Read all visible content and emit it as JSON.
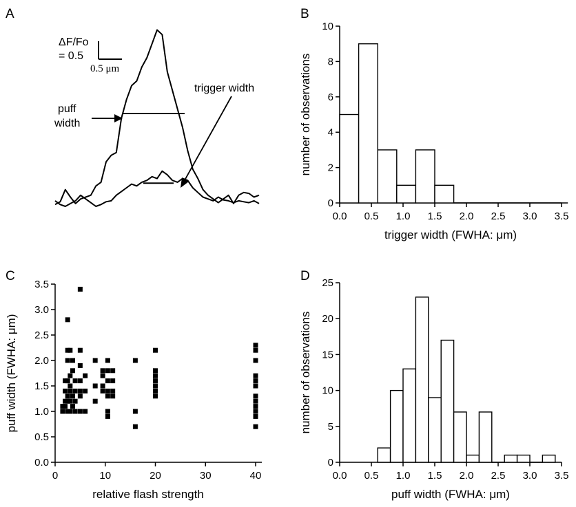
{
  "chart_data": [
    {
      "panel": "A",
      "type": "line",
      "annotations": {
        "scale_y_line1": "ΔF/Fo",
        "scale_y_line2": "= 0.5",
        "scale_x": "0.5 μm",
        "puff_line1": "puff",
        "puff_line2": "width",
        "trigger": "trigger width"
      },
      "series": [
        {
          "x": [
            0,
            0.1,
            0.2,
            0.3,
            0.4,
            0.5,
            0.6,
            0.7,
            0.8,
            0.9,
            1.0,
            1.1,
            1.2,
            1.3,
            1.4,
            1.5,
            1.6,
            1.7,
            1.8,
            1.9,
            2.0,
            2.1,
            2.2,
            2.3,
            2.4,
            2.5,
            2.6,
            2.7,
            2.8,
            2.9,
            3.0,
            3.1,
            3.2,
            3.3,
            3.4,
            3.5,
            3.6,
            3.7,
            3.8,
            3.9,
            4.0
          ],
          "y": [
            0.02,
            0.05,
            0.18,
            0.1,
            0.03,
            0.08,
            0.1,
            0.12,
            0.22,
            0.26,
            0.48,
            0.55,
            0.58,
            0.95,
            1.15,
            1.3,
            1.35,
            1.5,
            1.6,
            1.75,
            1.9,
            1.85,
            1.45,
            1.25,
            1.05,
            0.85,
            0.6,
            0.4,
            0.3,
            0.18,
            0.12,
            0.08,
            0.04,
            0.08,
            0.12,
            0.03,
            0.12,
            0.15,
            0.14,
            0.1,
            0.12
          ]
        },
        {
          "x": [
            0,
            0.1,
            0.2,
            0.3,
            0.4,
            0.5,
            0.6,
            0.7,
            0.8,
            0.9,
            1.0,
            1.1,
            1.2,
            1.3,
            1.4,
            1.5,
            1.6,
            1.7,
            1.8,
            1.9,
            2.0,
            2.1,
            2.2,
            2.3,
            2.4,
            2.5,
            2.6,
            2.7,
            2.8,
            2.9,
            3.0,
            3.1,
            3.2,
            3.3,
            3.4,
            3.5,
            3.6,
            3.7,
            3.8,
            3.9,
            4.0
          ],
          "y": [
            0.06,
            0.02,
            0.0,
            0.03,
            0.06,
            0.12,
            0.08,
            0.04,
            0.0,
            0.02,
            0.05,
            0.06,
            0.12,
            0.16,
            0.2,
            0.24,
            0.22,
            0.26,
            0.28,
            0.32,
            0.3,
            0.38,
            0.34,
            0.28,
            0.26,
            0.3,
            0.28,
            0.2,
            0.15,
            0.1,
            0.08,
            0.06,
            0.1,
            0.07,
            0.06,
            0.04,
            0.06,
            0.05,
            0.04,
            0.06,
            0.03
          ]
        }
      ],
      "puff_width_level": 1.0,
      "trigger_width_level": 0.25
    },
    {
      "panel": "B",
      "type": "bar",
      "xlabel": "trigger width (FWHA: μm)",
      "ylabel": "number of observations",
      "xlim": [
        0,
        3.5
      ],
      "ylim": [
        0,
        10
      ],
      "xticks": [
        "0.0",
        "0.5",
        "1.0",
        "1.5",
        "2.0",
        "2.5",
        "3.0",
        "3.5"
      ],
      "yticks": [
        "0",
        "2",
        "4",
        "6",
        "8",
        "10"
      ],
      "bins": [
        [
          0.0,
          0.3
        ],
        [
          0.3,
          0.6
        ],
        [
          0.6,
          0.9
        ],
        [
          0.9,
          1.2
        ],
        [
          1.2,
          1.5
        ],
        [
          1.5,
          1.8
        ],
        [
          1.8,
          2.1
        ],
        [
          2.1,
          2.4
        ],
        [
          2.4,
          2.7
        ],
        [
          2.7,
          3.0
        ],
        [
          3.0,
          3.3
        ],
        [
          3.3,
          3.6
        ]
      ],
      "values": [
        5,
        9,
        3,
        1,
        3,
        1,
        0,
        0,
        0,
        0,
        0,
        0
      ]
    },
    {
      "panel": "C",
      "type": "scatter",
      "xlabel": "relative flash strength",
      "ylabel": "puff width (FWHA: μm)",
      "xlim": [
        0,
        45
      ],
      "ylim": [
        0,
        3.5
      ],
      "xticks": [
        "0",
        "10",
        "20",
        "30",
        "40"
      ],
      "yticks": [
        "0.0",
        "0.5",
        "1.0",
        "1.5",
        "2.0",
        "2.5",
        "3.0",
        "3.5"
      ],
      "points": [
        [
          1.5,
          1.0
        ],
        [
          1.5,
          1.1
        ],
        [
          2,
          1.2
        ],
        [
          2,
          1.1
        ],
        [
          2,
          1.4
        ],
        [
          2,
          1.6
        ],
        [
          2.5,
          2.8
        ],
        [
          2.5,
          2.2
        ],
        [
          2.5,
          2.0
        ],
        [
          2.5,
          1.6
        ],
        [
          2.5,
          1.3
        ],
        [
          2.5,
          1.2
        ],
        [
          2.5,
          1.0
        ],
        [
          3,
          2.2
        ],
        [
          3,
          1.7
        ],
        [
          3,
          1.5
        ],
        [
          3,
          1.4
        ],
        [
          3,
          1.2
        ],
        [
          3,
          1.0
        ],
        [
          3.5,
          2.0
        ],
        [
          3.5,
          1.8
        ],
        [
          3.5,
          1.3
        ],
        [
          3.5,
          1.1
        ],
        [
          4,
          1.6
        ],
        [
          4,
          1.4
        ],
        [
          4,
          1.2
        ],
        [
          4,
          1.0
        ],
        [
          5,
          3.4
        ],
        [
          5,
          2.2
        ],
        [
          5,
          1.9
        ],
        [
          5,
          1.6
        ],
        [
          5,
          1.4
        ],
        [
          5,
          1.3
        ],
        [
          5,
          1.0
        ],
        [
          6,
          1.7
        ],
        [
          6,
          1.4
        ],
        [
          6,
          1.0
        ],
        [
          8,
          2.0
        ],
        [
          8,
          1.5
        ],
        [
          8,
          1.2
        ],
        [
          9.5,
          1.8
        ],
        [
          9.5,
          1.7
        ],
        [
          9.5,
          1.5
        ],
        [
          9.5,
          1.4
        ],
        [
          10.5,
          2.0
        ],
        [
          10.5,
          1.8
        ],
        [
          10.5,
          1.6
        ],
        [
          10.5,
          1.4
        ],
        [
          10.5,
          1.3
        ],
        [
          10.5,
          1.0
        ],
        [
          10.5,
          0.9
        ],
        [
          11.5,
          1.8
        ],
        [
          11.5,
          1.6
        ],
        [
          11.5,
          1.4
        ],
        [
          11.5,
          1.3
        ],
        [
          16,
          2.0
        ],
        [
          16,
          1.0
        ],
        [
          16,
          0.7
        ],
        [
          20,
          2.2
        ],
        [
          20,
          1.8
        ],
        [
          20,
          1.7
        ],
        [
          20,
          1.6
        ],
        [
          20,
          1.5
        ],
        [
          20,
          1.4
        ],
        [
          20,
          1.3
        ],
        [
          40,
          2.3
        ],
        [
          40,
          2.2
        ],
        [
          40,
          2.0
        ],
        [
          40,
          1.7
        ],
        [
          40,
          1.6
        ],
        [
          40,
          1.5
        ],
        [
          40,
          1.3
        ],
        [
          40,
          1.2
        ],
        [
          40,
          1.1
        ],
        [
          40,
          1.0
        ],
        [
          40,
          0.9
        ],
        [
          40,
          0.7
        ]
      ]
    },
    {
      "panel": "D",
      "type": "bar",
      "xlabel": "puff width (FWHA: μm)",
      "ylabel": "number of observations",
      "xlim": [
        0,
        3.5
      ],
      "ylim": [
        0,
        25
      ],
      "xticks": [
        "0.0",
        "0.5",
        "1.0",
        "1.5",
        "2.0",
        "2.5",
        "3.0",
        "3.5"
      ],
      "yticks": [
        "0",
        "5",
        "10",
        "15",
        "20",
        "25"
      ],
      "bins": [
        [
          0.6,
          0.8
        ],
        [
          0.8,
          1.0
        ],
        [
          1.0,
          1.2
        ],
        [
          1.2,
          1.4
        ],
        [
          1.4,
          1.6
        ],
        [
          1.6,
          1.8
        ],
        [
          1.8,
          2.0
        ],
        [
          2.0,
          2.2
        ],
        [
          2.2,
          2.4
        ],
        [
          2.4,
          2.6
        ],
        [
          2.6,
          2.8
        ],
        [
          2.8,
          3.0
        ],
        [
          3.0,
          3.2
        ],
        [
          3.2,
          3.4
        ]
      ],
      "values": [
        2,
        10,
        13,
        23,
        9,
        17,
        7,
        1,
        7,
        0,
        1,
        1,
        0,
        1
      ]
    }
  ],
  "panel_labels": {
    "a": "A",
    "b": "B",
    "c": "C",
    "d": "D"
  }
}
